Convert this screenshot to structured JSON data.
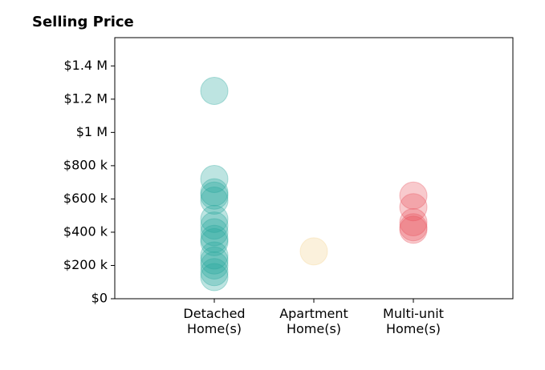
{
  "chart_data": {
    "type": "scatter",
    "title": "Selling Price",
    "categories": [
      "Detached Home(s)",
      "Apartment Home(s)",
      "Multi-unit Home(s)"
    ],
    "values": [
      [
        1250000,
        720000,
        640000,
        620000,
        590000,
        480000,
        440000,
        400000,
        360000,
        340000,
        260000,
        230000,
        200000,
        160000,
        130000
      ],
      [
        285000
      ],
      [
        620000,
        550000,
        460000,
        430000,
        415000
      ]
    ],
    "colors": [
      "#26a69a",
      "#f3d08a",
      "#e8505b"
    ],
    "ylim": [
      0,
      1570000
    ],
    "yticks": [
      {
        "value": 0,
        "label": "$0"
      },
      {
        "value": 200000,
        "label": "$200 k"
      },
      {
        "value": 400000,
        "label": "$400 k"
      },
      {
        "value": 600000,
        "label": "$600 k"
      },
      {
        "value": 800000,
        "label": "$800 k"
      },
      {
        "value": 1000000,
        "label": "$1 M"
      },
      {
        "value": 1200000,
        "label": "$1.2 M"
      },
      {
        "value": 1400000,
        "label": "$1.4 M"
      }
    ],
    "grid": false
  }
}
